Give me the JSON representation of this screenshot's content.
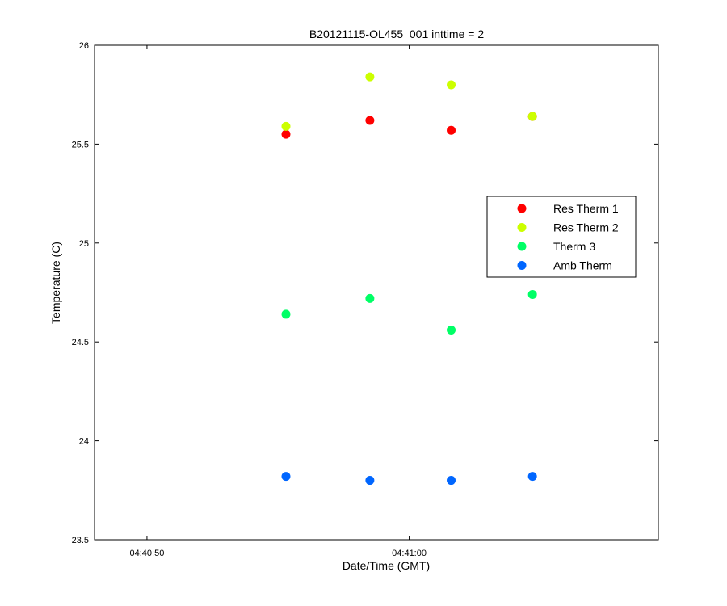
{
  "chart_data": {
    "type": "scatter",
    "title": "B20121115-OL455_001 inttime = 2",
    "xlabel": "Date/Time (GMT)",
    "ylabel": "Temperature (C)",
    "x_unit": "seconds after 04:40:50 GMT",
    "xlim": [
      -2,
      19.5
    ],
    "ylim": [
      23.5,
      26
    ],
    "x_ticks": [
      {
        "value": 0,
        "label": "04:40:50"
      },
      {
        "value": 10,
        "label": "04:41:00"
      }
    ],
    "y_ticks": [
      {
        "value": 23.5,
        "label": "23.5"
      },
      {
        "value": 24,
        "label": "24"
      },
      {
        "value": 24.5,
        "label": "24.5"
      },
      {
        "value": 25,
        "label": "25"
      },
      {
        "value": 25.5,
        "label": "25.5"
      },
      {
        "value": 26,
        "label": "26"
      }
    ],
    "grid": false,
    "legend_position": "right",
    "series": [
      {
        "name": "Res Therm 1",
        "color": "#ff0000",
        "x": [
          5.3,
          8.5,
          11.6,
          14.7
        ],
        "y": [
          25.55,
          25.62,
          25.57,
          25.64
        ]
      },
      {
        "name": "Res Therm 2",
        "color": "#ccff00",
        "x": [
          5.3,
          8.5,
          11.6,
          14.7
        ],
        "y": [
          25.59,
          25.84,
          25.8,
          25.64
        ]
      },
      {
        "name": "Therm 3",
        "color": "#00ff66",
        "x": [
          5.3,
          8.5,
          11.6,
          14.7
        ],
        "y": [
          24.64,
          24.72,
          24.56,
          24.74
        ]
      },
      {
        "name": "Amb Therm",
        "color": "#0066ff",
        "x": [
          5.3,
          8.5,
          11.6,
          14.7
        ],
        "y": [
          23.82,
          23.8,
          23.8,
          23.82
        ]
      }
    ]
  }
}
